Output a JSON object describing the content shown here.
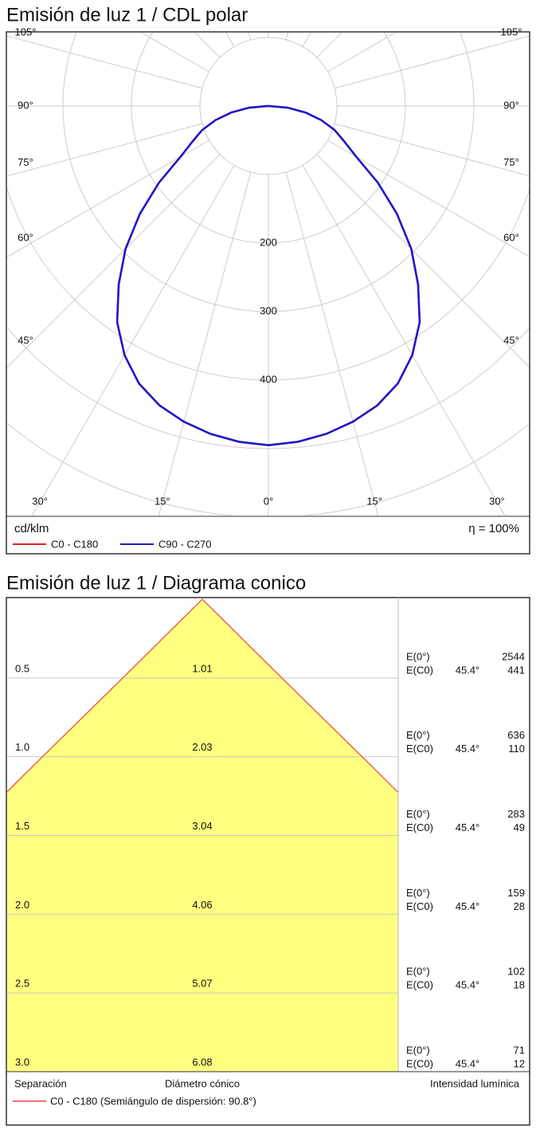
{
  "chart_data": [
    {
      "type": "polar",
      "title": "Emisión de luz 1 / CDL polar",
      "unit": "cd/klm",
      "efficiency": "η = 100%",
      "angles": [
        0,
        5,
        10,
        15,
        20,
        25,
        30,
        35,
        40,
        45,
        50,
        55,
        60,
        65,
        70,
        75,
        80,
        85,
        90
      ],
      "series": [
        {
          "name": "C0 - C180",
          "color": "#e0201c",
          "values": [
            495,
            492,
            486,
            477,
            465,
            447,
            420,
            385,
            340,
            295,
            245,
            195,
            148,
            122,
            103,
            80,
            55,
            28,
            0
          ]
        },
        {
          "name": "C90 - C270",
          "color": "#1a1acc",
          "values": [
            495,
            492,
            486,
            477,
            465,
            447,
            420,
            385,
            340,
            295,
            245,
            195,
            148,
            122,
            103,
            80,
            55,
            28,
            0
          ]
        }
      ],
      "rlim": [
        0,
        600
      ],
      "rticks": [
        200,
        300,
        400
      ],
      "angle_ticks": [
        {
          "value": 0,
          "label": "0°"
        },
        {
          "value": 15,
          "label": "15°"
        },
        {
          "value": 30,
          "label": "30°"
        },
        {
          "value": 45,
          "label": "45°"
        },
        {
          "value": 60,
          "label": "60°"
        },
        {
          "value": 75,
          "label": "75°"
        },
        {
          "value": 90,
          "label": "90°"
        },
        {
          "value": 105,
          "label": "105°"
        }
      ]
    },
    {
      "type": "cone",
      "title": "Emisión de luz 1 / Diagrama conico",
      "heights": [
        0.5,
        {
          "value": 1,
          "label": "1.0"
        },
        1.5,
        {
          "value": 2,
          "label": "2.0"
        },
        2.5,
        {
          "value": 3,
          "label": "3.0"
        }
      ],
      "diameters": [
        1.01,
        2.03,
        3.04,
        4.06,
        5.07,
        6.08
      ],
      "ylim": [
        0,
        3
      ],
      "e0_label": "E(0°)",
      "ec0_label": "E(C0)",
      "half_angle": {
        "value": 45.4,
        "label": "45.4°"
      },
      "e0": [
        2544,
        636,
        283,
        159,
        102,
        71
      ],
      "ec0": [
        441,
        110,
        49,
        28,
        18,
        12
      ],
      "labels": {
        "separation": "Separación",
        "diameter": "Diámetro cónico",
        "intensity": "Intensidad lumínica"
      },
      "series": [
        {
          "name": "C0 - C180 (Semiángulo de dispersión: 90.8°)",
          "color": "#e8453c"
        }
      ],
      "fill": "#ffff80"
    }
  ]
}
